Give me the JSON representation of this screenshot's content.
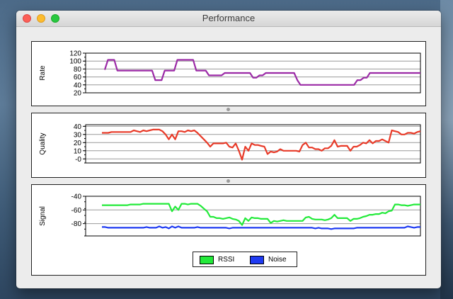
{
  "window": {
    "title": "Performance"
  },
  "colors": {
    "rate": "#9b2aa6",
    "quality": "#e83a28",
    "rssi": "#23ea3a",
    "noise": "#1f3bf2",
    "grid": "#9a9a9a"
  },
  "legend": [
    {
      "name": "RSSI",
      "color": "#23ea3a"
    },
    {
      "name": "Noise",
      "color": "#1f3bf2"
    }
  ],
  "chart_data": [
    {
      "type": "line",
      "ylabel": "Rate",
      "ylim": [
        20,
        120
      ],
      "yticks": [
        120,
        100,
        80,
        60,
        40,
        20
      ],
      "grid": true,
      "series": [
        {
          "color": "#9b2aa6",
          "x_range": [
            0,
            100
          ],
          "values": [
            78,
            103,
            103,
            103,
            76,
            76,
            76,
            76,
            76,
            76,
            76,
            76,
            76,
            76,
            76,
            76,
            52,
            52,
            52,
            76,
            76,
            76,
            76,
            103,
            103,
            103,
            103,
            103,
            103,
            76,
            76,
            76,
            76,
            64,
            64,
            64,
            64,
            64,
            70,
            70,
            70,
            70,
            70,
            70,
            70,
            70,
            70,
            58,
            58,
            64,
            64,
            70,
            70,
            70,
            70,
            70,
            70,
            70,
            70,
            70,
            70,
            52,
            40,
            40,
            40,
            40,
            40,
            40,
            40,
            40,
            40,
            40,
            40,
            40,
            40,
            40,
            40,
            40,
            40,
            40,
            52,
            52,
            58,
            58,
            70,
            70,
            70,
            70,
            70,
            70,
            70,
            70,
            70,
            70,
            70,
            70,
            70,
            70,
            70,
            70,
            70
          ]
        }
      ]
    },
    {
      "type": "line",
      "ylabel": "Quality",
      "ylim": [
        -5,
        42
      ],
      "yticks": [
        40,
        30,
        20,
        10,
        0
      ],
      "ytick_labels": [
        "40",
        "30",
        "20",
        "10",
        "-0"
      ],
      "grid": true,
      "series": [
        {
          "color": "#e83a28",
          "x_range": [
            0,
            100
          ],
          "values": [
            32,
            32,
            32,
            33,
            33,
            33,
            33,
            33,
            33,
            33,
            35,
            34,
            33,
            35,
            34,
            35,
            36,
            36,
            36,
            34,
            30,
            24,
            30,
            24,
            34,
            34,
            33,
            35,
            34,
            35,
            32,
            28,
            24,
            20,
            15,
            19,
            19,
            19,
            19,
            20,
            15,
            14,
            19,
            10,
            -1,
            15,
            10,
            19,
            17,
            17,
            16,
            15,
            6,
            9,
            8,
            9,
            12,
            10,
            10,
            10,
            10,
            10,
            9,
            17,
            20,
            14,
            14,
            12,
            12,
            10,
            13,
            13,
            16,
            23,
            15,
            16,
            16,
            16,
            10,
            15,
            15,
            17,
            20,
            19,
            23,
            19,
            22,
            22,
            24,
            22,
            20,
            35,
            34,
            33,
            30,
            30,
            32,
            32,
            31,
            33,
            34
          ]
        }
      ]
    },
    {
      "type": "line",
      "ylabel": "Signal",
      "ylim": [
        -98,
        -40
      ],
      "yticks": [
        -40,
        -60,
        -80
      ],
      "grid": true,
      "series": [
        {
          "name": "RSSI",
          "color": "#23ea3a",
          "x_range": [
            0,
            100
          ],
          "values": [
            -53,
            -53,
            -53,
            -53,
            -53,
            -53,
            -53,
            -53,
            -53,
            -52,
            -52,
            -52,
            -52,
            -51,
            -51,
            -51,
            -51,
            -51,
            -51,
            -51,
            -51,
            -51,
            -62,
            -55,
            -60,
            -51,
            -51,
            -52,
            -51,
            -51,
            -51,
            -54,
            -58,
            -62,
            -70,
            -70,
            -72,
            -72,
            -73,
            -72,
            -71,
            -73,
            -74,
            -76,
            -82,
            -72,
            -76,
            -71,
            -72,
            -72,
            -73,
            -73,
            -73,
            -79,
            -76,
            -77,
            -76,
            -75,
            -76,
            -76,
            -76,
            -76,
            -76,
            -76,
            -71,
            -70,
            -73,
            -74,
            -74,
            -74,
            -75,
            -74,
            -72,
            -67,
            -72,
            -72,
            -72,
            -72,
            -76,
            -73,
            -73,
            -72,
            -70,
            -69,
            -67,
            -67,
            -66,
            -66,
            -64,
            -65,
            -62,
            -61,
            -52,
            -52,
            -53,
            -53,
            -54,
            -53,
            -52,
            -52,
            -52
          ]
        },
        {
          "name": "Noise",
          "color": "#1f3bf2",
          "x_range": [
            0,
            100
          ],
          "values": [
            -85,
            -85,
            -86,
            -86,
            -86,
            -86,
            -86,
            -86,
            -86,
            -86,
            -86,
            -86,
            -86,
            -86,
            -85,
            -86,
            -86,
            -86,
            -84,
            -86,
            -85,
            -87,
            -84,
            -86,
            -84,
            -86,
            -86,
            -86,
            -86,
            -86,
            -85,
            -86,
            -86,
            -86,
            -86,
            -86,
            -86,
            -86,
            -86,
            -86,
            -87,
            -86,
            -86,
            -86,
            -86,
            -86,
            -86,
            -86,
            -86,
            -86,
            -86,
            -86,
            -86,
            -86,
            -86,
            -86,
            -86,
            -86,
            -86,
            -86,
            -86,
            -86,
            -86,
            -86,
            -86,
            -86,
            -86,
            -87,
            -86,
            -87,
            -87,
            -87,
            -88,
            -87,
            -87,
            -87,
            -87,
            -87,
            -87,
            -87,
            -86,
            -86,
            -86,
            -86,
            -86,
            -86,
            -86,
            -86,
            -86,
            -86,
            -86,
            -86,
            -86,
            -86,
            -86,
            -86,
            -84,
            -85,
            -86,
            -85,
            -85
          ]
        }
      ]
    }
  ]
}
